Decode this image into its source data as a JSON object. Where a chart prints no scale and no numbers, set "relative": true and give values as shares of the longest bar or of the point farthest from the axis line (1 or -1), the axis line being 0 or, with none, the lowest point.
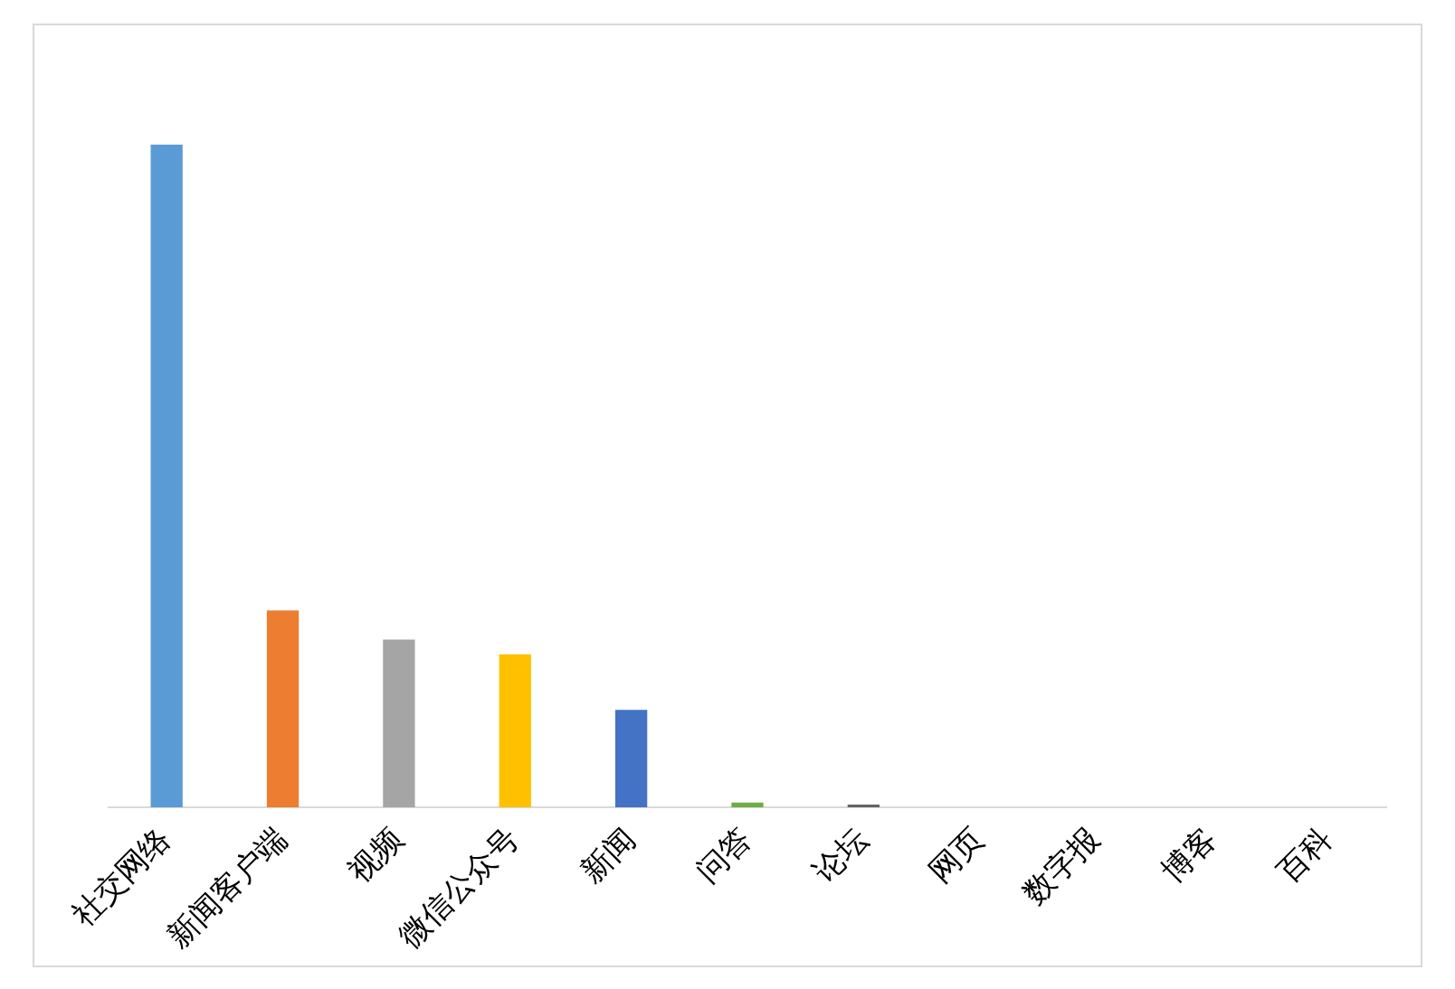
{
  "chart_data": {
    "type": "bar",
    "relative": true,
    "categories": [
      "社交网络",
      "新闻客户端",
      "视频",
      "微信公众号",
      "新闻",
      "问答",
      "论坛",
      "网页",
      "数字报",
      "博客",
      "百科"
    ],
    "values": [
      1,
      0.297,
      0.253,
      0.231,
      0.147,
      0.007,
      0.004,
      0,
      0,
      0,
      0
    ],
    "colors": [
      "#5b9bd5",
      "#ed7d31",
      "#a5a5a5",
      "#ffc000",
      "#4472c4",
      "#70ad47",
      "#636363",
      "#264478",
      "#9e480e",
      "#997300",
      "#43682b"
    ],
    "grid": false,
    "legend": false
  }
}
